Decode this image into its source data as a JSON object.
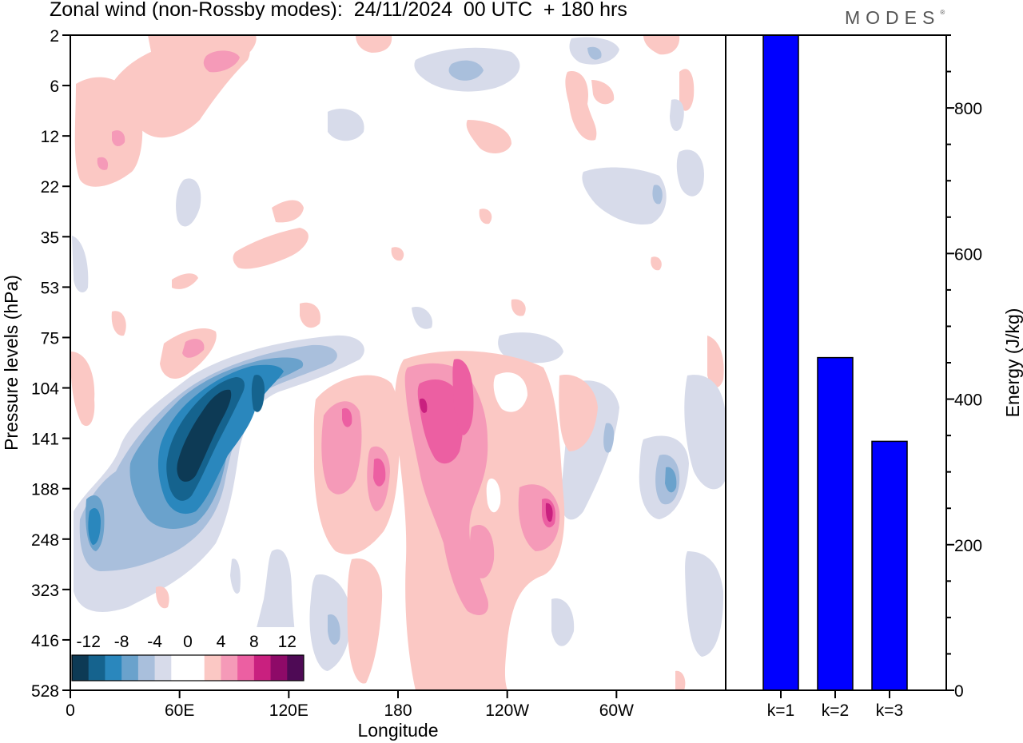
{
  "title": "Zonal wind (non-Rossby modes):  24/11/2024  00 UTC  + 180 hrs",
  "brand": "MODES",
  "brand_mark": "®",
  "chart_data": [
    {
      "type": "heatmap",
      "xlabel": "Longitude",
      "ylabel": "Pressure levels (hPa)",
      "x_ticks": [
        "0",
        "60E",
        "120E",
        "180",
        "120W",
        "60W"
      ],
      "x_tick_degrees": [
        0,
        60,
        120,
        180,
        240,
        300
      ],
      "xlim": [
        0,
        360
      ],
      "y_levels": [
        "2",
        "6",
        "12",
        "22",
        "35",
        "53",
        "75",
        "104",
        "141",
        "188",
        "248",
        "323",
        "416",
        "528"
      ],
      "colorbar": {
        "labels": [
          "-12",
          "-8",
          "-4",
          "0",
          "4",
          "8",
          "12"
        ],
        "colors": [
          "#0d3a55",
          "#15638e",
          "#2a87bd",
          "#6aa2cc",
          "#a9bfdc",
          "#d7dbea",
          "#ffffff",
          "#ffffff",
          "#fbc8c4",
          "#f59ab8",
          "#ec5fa2",
          "#c9207f",
          "#8e0a68",
          "#4e0a55"
        ]
      }
    },
    {
      "type": "bar",
      "categories": [
        "k=1",
        "k=2",
        "k=3"
      ],
      "values": [
        900,
        457,
        342
      ],
      "ylabel": "Energy (J/kg)",
      "y_ticks": [
        "0",
        "200",
        "400",
        "600",
        "800"
      ],
      "ylim": [
        0,
        900
      ],
      "color": "#0000ff"
    }
  ]
}
